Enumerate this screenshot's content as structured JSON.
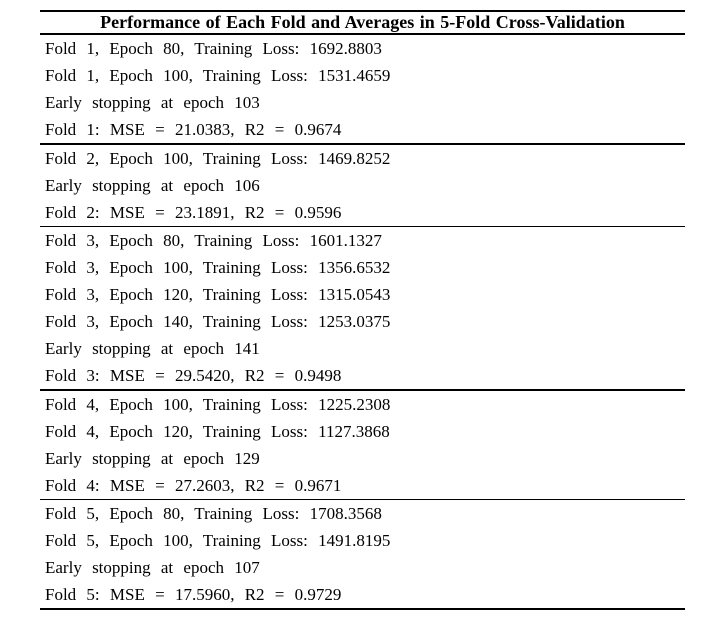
{
  "page": {
    "background_color": "#ffffff",
    "text_color": "#000000",
    "rule_color": "#000000"
  },
  "table": {
    "title": "Performance of Each Fold and Averages in 5-Fold Cross-Validation",
    "blocks": [
      {
        "fold": 1,
        "rows": [
          "Fold 1, Epoch 80, Training Loss: 1692.8803",
          "Fold 1, Epoch 100, Training Loss: 1531.4659",
          "Early stopping at epoch 103",
          "Fold 1: MSE = 21.0383, R2 = 0.9674"
        ]
      },
      {
        "fold": 2,
        "rows": [
          "Fold 2, Epoch 100, Training Loss: 1469.8252",
          "Early stopping at epoch 106",
          "Fold 2: MSE = 23.1891, R2 = 0.9596"
        ]
      },
      {
        "fold": 3,
        "rows": [
          "Fold 3, Epoch 80, Training Loss: 1601.1327",
          "Fold 3, Epoch 100, Training Loss: 1356.6532",
          "Fold 3, Epoch 120, Training Loss: 1315.0543",
          "Fold 3, Epoch 140, Training Loss: 1253.0375",
          "Early stopping at epoch 141",
          "Fold 3: MSE = 29.5420, R2 = 0.9498"
        ]
      },
      {
        "fold": 4,
        "rows": [
          "Fold 4, Epoch 100, Training Loss: 1225.2308",
          "Fold 4, Epoch 120, Training Loss: 1127.3868",
          "Early stopping at epoch 129",
          "Fold 4: MSE = 27.2603, R2 = 0.9671"
        ]
      },
      {
        "fold": 5,
        "rows": [
          "Fold 5, Epoch 80, Training Loss: 1708.3568",
          "Fold 5, Epoch 100, Training Loss: 1491.8195",
          "Early stopping at epoch 107",
          "Fold 5: MSE = 17.5960, R2 = 0.9729"
        ]
      }
    ]
  },
  "chart_data": {
    "type": "table",
    "title": "Performance of Each Fold and Averages in 5-Fold Cross-Validation",
    "folds": [
      {
        "fold": 1,
        "training_loss_log": [
          {
            "epoch": 80,
            "loss": 1692.8803
          },
          {
            "epoch": 100,
            "loss": 1531.4659
          }
        ],
        "early_stopping_epoch": 103,
        "mse": 21.0383,
        "r2": 0.9674
      },
      {
        "fold": 2,
        "training_loss_log": [
          {
            "epoch": 100,
            "loss": 1469.8252
          }
        ],
        "early_stopping_epoch": 106,
        "mse": 23.1891,
        "r2": 0.9596
      },
      {
        "fold": 3,
        "training_loss_log": [
          {
            "epoch": 80,
            "loss": 1601.1327
          },
          {
            "epoch": 100,
            "loss": 1356.6532
          },
          {
            "epoch": 120,
            "loss": 1315.0543
          },
          {
            "epoch": 140,
            "loss": 1253.0375
          }
        ],
        "early_stopping_epoch": 141,
        "mse": 29.542,
        "r2": 0.9498
      },
      {
        "fold": 4,
        "training_loss_log": [
          {
            "epoch": 100,
            "loss": 1225.2308
          },
          {
            "epoch": 120,
            "loss": 1127.3868
          }
        ],
        "early_stopping_epoch": 129,
        "mse": 27.2603,
        "r2": 0.9671
      },
      {
        "fold": 5,
        "training_loss_log": [
          {
            "epoch": 80,
            "loss": 1708.3568
          },
          {
            "epoch": 100,
            "loss": 1491.8195
          }
        ],
        "early_stopping_epoch": 107,
        "mse": 17.596,
        "r2": 0.9729
      }
    ]
  }
}
